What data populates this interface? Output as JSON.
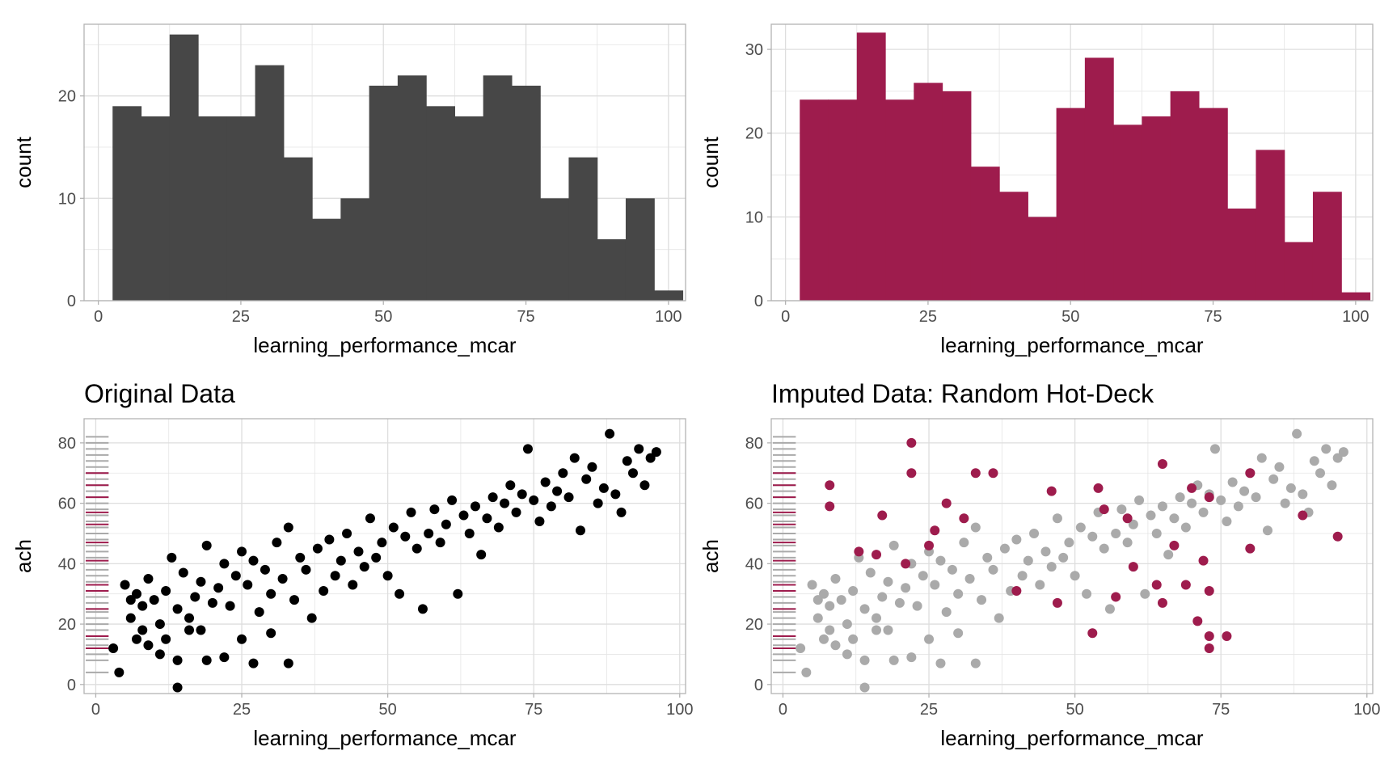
{
  "colors": {
    "dark": "#474747",
    "accent": "#9e1c4d",
    "observed_point": "#000000",
    "grey_point": "#aaaaaa",
    "grid": "#e5e5e5",
    "frame": "#b3b3b3"
  },
  "chart_data": [
    {
      "type": "bar",
      "panel": "top-left",
      "title": "",
      "xlabel": "learning_performance_mcar",
      "ylabel": "count",
      "xlim": [
        -2.5,
        103
      ],
      "ylim": [
        0,
        27
      ],
      "xticks": [
        "0",
        "25",
        "50",
        "75",
        "100"
      ],
      "yticks": [
        "0",
        "10",
        "20"
      ],
      "bin_edges": [
        2.5,
        7.5,
        12.5,
        17.5,
        22.5,
        27.5,
        32.5,
        37.5,
        42.5,
        47.5,
        52.5,
        57.5,
        62.5,
        67.5,
        72.5,
        77.5,
        82.5,
        87.5,
        92.5,
        97.5,
        102.5
      ],
      "values": [
        19,
        18,
        26,
        18,
        18,
        23,
        14,
        8,
        10,
        21,
        22,
        19,
        18,
        22,
        21,
        10,
        14,
        6,
        10,
        1
      ],
      "color": "#474747"
    },
    {
      "type": "bar",
      "panel": "top-right",
      "title": "",
      "xlabel": "learning_performance_mcar",
      "ylabel": "count",
      "xlim": [
        -2.5,
        103
      ],
      "ylim": [
        0,
        33
      ],
      "xticks": [
        "0",
        "25",
        "50",
        "75",
        "100"
      ],
      "yticks": [
        "0",
        "10",
        "20",
        "30"
      ],
      "bin_edges": [
        2.5,
        7.5,
        12.5,
        17.5,
        22.5,
        27.5,
        32.5,
        37.5,
        42.5,
        47.5,
        52.5,
        57.5,
        62.5,
        67.5,
        72.5,
        77.5,
        82.5,
        87.5,
        92.5,
        97.5,
        102.5
      ],
      "values": [
        24,
        24,
        32,
        24,
        26,
        25,
        16,
        13,
        10,
        23,
        29,
        21,
        22,
        25,
        23,
        11,
        18,
        7,
        13,
        1
      ],
      "color": "#9e1c4d"
    },
    {
      "type": "scatter",
      "panel": "bottom-left",
      "title": "Original Data",
      "xlabel": "learning_performance_mcar",
      "ylabel": "ach",
      "xlim": [
        -2,
        101
      ],
      "ylim": [
        -3,
        88
      ],
      "xticks": [
        "0",
        "25",
        "50",
        "75",
        "100"
      ],
      "yticks": [
        "0",
        "20",
        "40",
        "60",
        "80"
      ],
      "rug_y_grey": [
        4,
        8,
        10,
        13,
        15,
        18,
        20,
        22,
        24,
        25,
        27,
        29,
        31,
        34,
        36,
        38,
        40,
        42,
        44,
        46,
        48,
        50,
        52,
        54,
        56,
        58,
        60,
        62,
        64,
        66,
        68,
        70,
        72,
        74,
        76,
        78,
        80,
        82
      ],
      "rug_y_accent": [
        12,
        16,
        25,
        31,
        33,
        41,
        47,
        53,
        57,
        62,
        66,
        70
      ],
      "points": [
        [
          3,
          12
        ],
        [
          4,
          4
        ],
        [
          5,
          33
        ],
        [
          6,
          22
        ],
        [
          7,
          30
        ],
        [
          8,
          26
        ],
        [
          9,
          35
        ],
        [
          10,
          28
        ],
        [
          11,
          20
        ],
        [
          12,
          31
        ],
        [
          13,
          42
        ],
        [
          14,
          25
        ],
        [
          15,
          37
        ],
        [
          16,
          18
        ],
        [
          17,
          29
        ],
        [
          18,
          34
        ],
        [
          19,
          46
        ],
        [
          20,
          27
        ],
        [
          21,
          32
        ],
        [
          22,
          40
        ],
        [
          23,
          26
        ],
        [
          24,
          36
        ],
        [
          25,
          44
        ],
        [
          26,
          33
        ],
        [
          27,
          41
        ],
        [
          28,
          24
        ],
        [
          29,
          38
        ],
        [
          30,
          30
        ],
        [
          31,
          47
        ],
        [
          32,
          35
        ],
        [
          33,
          52
        ],
        [
          34,
          28
        ],
        [
          35,
          42
        ],
        [
          36,
          38
        ],
        [
          37,
          22
        ],
        [
          38,
          45
        ],
        [
          39,
          31
        ],
        [
          40,
          48
        ],
        [
          41,
          36
        ],
        [
          42,
          41
        ],
        [
          43,
          50
        ],
        [
          44,
          33
        ],
        [
          45,
          44
        ],
        [
          46,
          39
        ],
        [
          47,
          55
        ],
        [
          48,
          42
        ],
        [
          49,
          47
        ],
        [
          50,
          36
        ],
        [
          51,
          52
        ],
        [
          52,
          30
        ],
        [
          53,
          49
        ],
        [
          54,
          57
        ],
        [
          55,
          45
        ],
        [
          56,
          25
        ],
        [
          57,
          50
        ],
        [
          58,
          58
        ],
        [
          59,
          47
        ],
        [
          60,
          53
        ],
        [
          61,
          61
        ],
        [
          62,
          30
        ],
        [
          63,
          56
        ],
        [
          64,
          50
        ],
        [
          65,
          59
        ],
        [
          66,
          43
        ],
        [
          67,
          55
        ],
        [
          68,
          62
        ],
        [
          69,
          52
        ],
        [
          70,
          60
        ],
        [
          71,
          66
        ],
        [
          72,
          57
        ],
        [
          73,
          63
        ],
        [
          74,
          78
        ],
        [
          75,
          61
        ],
        [
          76,
          54
        ],
        [
          77,
          67
        ],
        [
          78,
          59
        ],
        [
          79,
          64
        ],
        [
          80,
          70
        ],
        [
          81,
          62
        ],
        [
          82,
          75
        ],
        [
          83,
          51
        ],
        [
          84,
          68
        ],
        [
          85,
          72
        ],
        [
          86,
          60
        ],
        [
          87,
          65
        ],
        [
          88,
          83
        ],
        [
          89,
          63
        ],
        [
          90,
          57
        ],
        [
          91,
          74
        ],
        [
          92,
          70
        ],
        [
          93,
          78
        ],
        [
          94,
          66
        ],
        [
          95,
          75
        ],
        [
          96,
          77
        ],
        [
          7,
          15
        ],
        [
          9,
          13
        ],
        [
          11,
          10
        ],
        [
          14,
          8
        ],
        [
          14,
          -1
        ],
        [
          19,
          8
        ],
        [
          22,
          9
        ],
        [
          27,
          7
        ],
        [
          33,
          7
        ],
        [
          18,
          18
        ],
        [
          25,
          15
        ],
        [
          30,
          17
        ],
        [
          6,
          28
        ],
        [
          8,
          18
        ],
        [
          12,
          15
        ],
        [
          16,
          22
        ]
      ],
      "color": "#000000"
    },
    {
      "type": "scatter",
      "panel": "bottom-right",
      "title": "Imputed Data: Random Hot-Deck",
      "xlabel": "learning_performance_mcar",
      "ylabel": "ach",
      "xlim": [
        -2,
        101
      ],
      "ylim": [
        -3,
        88
      ],
      "xticks": [
        "0",
        "25",
        "50",
        "75",
        "100"
      ],
      "yticks": [
        "0",
        "20",
        "40",
        "60",
        "80"
      ],
      "rug_y_grey": [
        4,
        8,
        10,
        13,
        15,
        18,
        20,
        22,
        24,
        25,
        27,
        29,
        31,
        34,
        36,
        38,
        40,
        42,
        44,
        46,
        48,
        50,
        52,
        54,
        56,
        58,
        60,
        62,
        64,
        66,
        68,
        70,
        72,
        74,
        76,
        78,
        80,
        82
      ],
      "rug_y_accent": [
        12,
        16,
        25,
        31,
        33,
        41,
        47,
        53,
        57,
        62,
        66,
        70
      ],
      "grey_points": [
        [
          3,
          12
        ],
        [
          4,
          4
        ],
        [
          5,
          33
        ],
        [
          6,
          22
        ],
        [
          7,
          30
        ],
        [
          8,
          26
        ],
        [
          9,
          35
        ],
        [
          10,
          28
        ],
        [
          11,
          20
        ],
        [
          12,
          31
        ],
        [
          13,
          42
        ],
        [
          14,
          25
        ],
        [
          15,
          37
        ],
        [
          16,
          18
        ],
        [
          17,
          29
        ],
        [
          18,
          34
        ],
        [
          19,
          46
        ],
        [
          20,
          27
        ],
        [
          21,
          32
        ],
        [
          22,
          40
        ],
        [
          23,
          26
        ],
        [
          24,
          36
        ],
        [
          25,
          44
        ],
        [
          26,
          33
        ],
        [
          27,
          41
        ],
        [
          28,
          24
        ],
        [
          29,
          38
        ],
        [
          30,
          30
        ],
        [
          31,
          47
        ],
        [
          32,
          35
        ],
        [
          33,
          52
        ],
        [
          34,
          28
        ],
        [
          35,
          42
        ],
        [
          36,
          38
        ],
        [
          37,
          22
        ],
        [
          38,
          45
        ],
        [
          39,
          31
        ],
        [
          40,
          48
        ],
        [
          41,
          36
        ],
        [
          42,
          41
        ],
        [
          43,
          50
        ],
        [
          44,
          33
        ],
        [
          45,
          44
        ],
        [
          46,
          39
        ],
        [
          47,
          55
        ],
        [
          48,
          42
        ],
        [
          49,
          47
        ],
        [
          50,
          36
        ],
        [
          51,
          52
        ],
        [
          52,
          30
        ],
        [
          53,
          49
        ],
        [
          54,
          57
        ],
        [
          55,
          45
        ],
        [
          56,
          25
        ],
        [
          57,
          50
        ],
        [
          58,
          58
        ],
        [
          59,
          47
        ],
        [
          60,
          53
        ],
        [
          61,
          61
        ],
        [
          62,
          30
        ],
        [
          63,
          56
        ],
        [
          64,
          50
        ],
        [
          65,
          59
        ],
        [
          66,
          43
        ],
        [
          67,
          55
        ],
        [
          68,
          62
        ],
        [
          69,
          52
        ],
        [
          70,
          60
        ],
        [
          71,
          66
        ],
        [
          72,
          57
        ],
        [
          73,
          63
        ],
        [
          74,
          78
        ],
        [
          75,
          61
        ],
        [
          76,
          54
        ],
        [
          77,
          67
        ],
        [
          78,
          59
        ],
        [
          79,
          64
        ],
        [
          80,
          70
        ],
        [
          81,
          62
        ],
        [
          82,
          75
        ],
        [
          83,
          51
        ],
        [
          84,
          68
        ],
        [
          85,
          72
        ],
        [
          86,
          60
        ],
        [
          87,
          65
        ],
        [
          88,
          83
        ],
        [
          89,
          63
        ],
        [
          90,
          57
        ],
        [
          91,
          74
        ],
        [
          92,
          70
        ],
        [
          93,
          78
        ],
        [
          94,
          66
        ],
        [
          95,
          75
        ],
        [
          96,
          77
        ],
        [
          7,
          15
        ],
        [
          9,
          13
        ],
        [
          11,
          10
        ],
        [
          14,
          8
        ],
        [
          14,
          -1
        ],
        [
          19,
          8
        ],
        [
          22,
          9
        ],
        [
          27,
          7
        ],
        [
          33,
          7
        ],
        [
          18,
          18
        ],
        [
          25,
          15
        ],
        [
          30,
          17
        ],
        [
          6,
          28
        ],
        [
          8,
          18
        ],
        [
          12,
          15
        ],
        [
          16,
          22
        ]
      ],
      "accent_points": [
        [
          22,
          80
        ],
        [
          22,
          70
        ],
        [
          8,
          66
        ],
        [
          8,
          59
        ],
        [
          17,
          56
        ],
        [
          28,
          60
        ],
        [
          33,
          70
        ],
        [
          36,
          70
        ],
        [
          31,
          55
        ],
        [
          26,
          51
        ],
        [
          46,
          64
        ],
        [
          54,
          65
        ],
        [
          55,
          58
        ],
        [
          65,
          73
        ],
        [
          70,
          65
        ],
        [
          73,
          62
        ],
        [
          80,
          70
        ],
        [
          80,
          45
        ],
        [
          89,
          56
        ],
        [
          95,
          49
        ],
        [
          13,
          44
        ],
        [
          16,
          43
        ],
        [
          21,
          40
        ],
        [
          25,
          46
        ],
        [
          40,
          31
        ],
        [
          47,
          27
        ],
        [
          53,
          17
        ],
        [
          57,
          29
        ],
        [
          60,
          39
        ],
        [
          64,
          33
        ],
        [
          65,
          27
        ],
        [
          69,
          33
        ],
        [
          72,
          41
        ],
        [
          73,
          31
        ],
        [
          73,
          16
        ],
        [
          73,
          12
        ],
        [
          76,
          16
        ],
        [
          71,
          21
        ],
        [
          67,
          46
        ],
        [
          59,
          55
        ]
      ],
      "grey_color": "#aaaaaa",
      "accent_color": "#9e1c4d"
    }
  ]
}
